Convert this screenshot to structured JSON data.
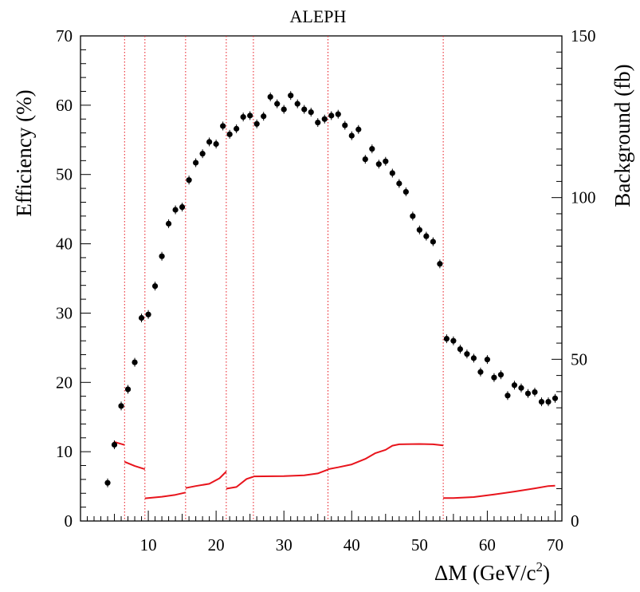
{
  "chart_data": {
    "type": "scatter",
    "title": "ALEPH",
    "xlabel": "ΔM (GeV/c",
    "xlabel_sup": "2",
    "xlabel_close": ")",
    "ylabel": "Efficiency (%)",
    "y2label": "Background (fb)",
    "xlim": [
      0,
      71
    ],
    "ylim": [
      0,
      70
    ],
    "y2lim": [
      0,
      150
    ],
    "x_ticks": [
      10,
      20,
      30,
      40,
      50,
      60,
      70
    ],
    "y_ticks": [
      0,
      10,
      20,
      30,
      40,
      50,
      60,
      70
    ],
    "y2_ticks": [
      0,
      50,
      100,
      150
    ],
    "grid": false,
    "region_boundaries": [
      6.5,
      9.5,
      15.5,
      21.5,
      25.5,
      36.5,
      53.5
    ],
    "colors": {
      "points": "#000000",
      "background_curve": "#e8141c",
      "boundary_lines": "#e8141c"
    },
    "series": [
      {
        "type": "scatter",
        "axis": "left",
        "x": [
          4,
          5,
          6,
          7,
          8,
          9,
          10,
          11,
          12,
          13,
          14,
          15,
          16,
          17,
          18,
          19,
          20,
          21,
          22,
          23,
          24,
          25,
          26,
          27,
          28,
          29,
          30,
          31,
          32,
          33,
          34,
          35,
          36,
          37,
          38,
          39,
          40,
          41,
          42,
          43,
          44,
          45,
          46,
          47,
          48,
          49,
          50,
          51,
          52,
          53,
          54,
          55,
          56,
          57,
          58,
          59,
          60,
          61,
          62,
          63,
          64,
          65,
          66,
          67,
          68,
          69,
          70
        ],
        "y": [
          5.5,
          11,
          16.6,
          19,
          22.9,
          29.3,
          29.8,
          33.9,
          38.2,
          42.9,
          44.9,
          45.3,
          49.2,
          51.7,
          53,
          54.7,
          54.4,
          57,
          55.8,
          56.6,
          58.3,
          58.5,
          57.3,
          58.4,
          61.2,
          60.2,
          59.4,
          61.4,
          60.2,
          59.4,
          59,
          57.5,
          58,
          58.5,
          58.7,
          57.1,
          55.6,
          56.5,
          52.2,
          53.7,
          51.5,
          51.9,
          50.2,
          48.7,
          47.5,
          44,
          42,
          41.1,
          40.3,
          37.1,
          26.3,
          26,
          24.8,
          24.1,
          23.5,
          21.5,
          23.3,
          20.7,
          21.1,
          18.1,
          19.6,
          19.2,
          18.4,
          18.6,
          17.2,
          17.2,
          17.7
        ]
      },
      {
        "type": "line",
        "axis": "right",
        "segments": [
          {
            "x": [
              4.9,
              6.5
            ],
            "y": [
              24.5,
              23.5
            ]
          },
          {
            "x": [
              6.5,
              8,
              9.5
            ],
            "y": [
              18.3,
              17,
              16
            ]
          },
          {
            "x": [
              9.5,
              12,
              14,
              15.5
            ],
            "y": [
              7,
              7.5,
              8.1,
              8.8
            ]
          },
          {
            "x": [
              15.5,
              17,
              19,
              20.5,
              21.5
            ],
            "y": [
              10.2,
              10.8,
              11.5,
              13.2,
              15.3
            ]
          },
          {
            "x": [
              21.5,
              23,
              24.5,
              25.5
            ],
            "y": [
              10,
              10.5,
              13,
              13.7
            ]
          },
          {
            "x": [
              25.5,
              30,
              33,
              35,
              36.5
            ],
            "y": [
              13.8,
              13.9,
              14.1,
              14.7,
              15.9
            ]
          },
          {
            "x": [
              36.5,
              38,
              40,
              42,
              43.5,
              45,
              46,
              47,
              50,
              52,
              53.5
            ],
            "y": [
              16,
              16.6,
              17.5,
              19.2,
              21,
              22,
              23.3,
              23.7,
              23.8,
              23.7,
              23.4
            ]
          },
          {
            "x": [
              53.5,
              55,
              58,
              61,
              64,
              67,
              69,
              70
            ],
            "y": [
              7.1,
              7.1,
              7.4,
              8.2,
              9.1,
              10.1,
              10.8,
              10.9
            ]
          }
        ]
      }
    ]
  }
}
